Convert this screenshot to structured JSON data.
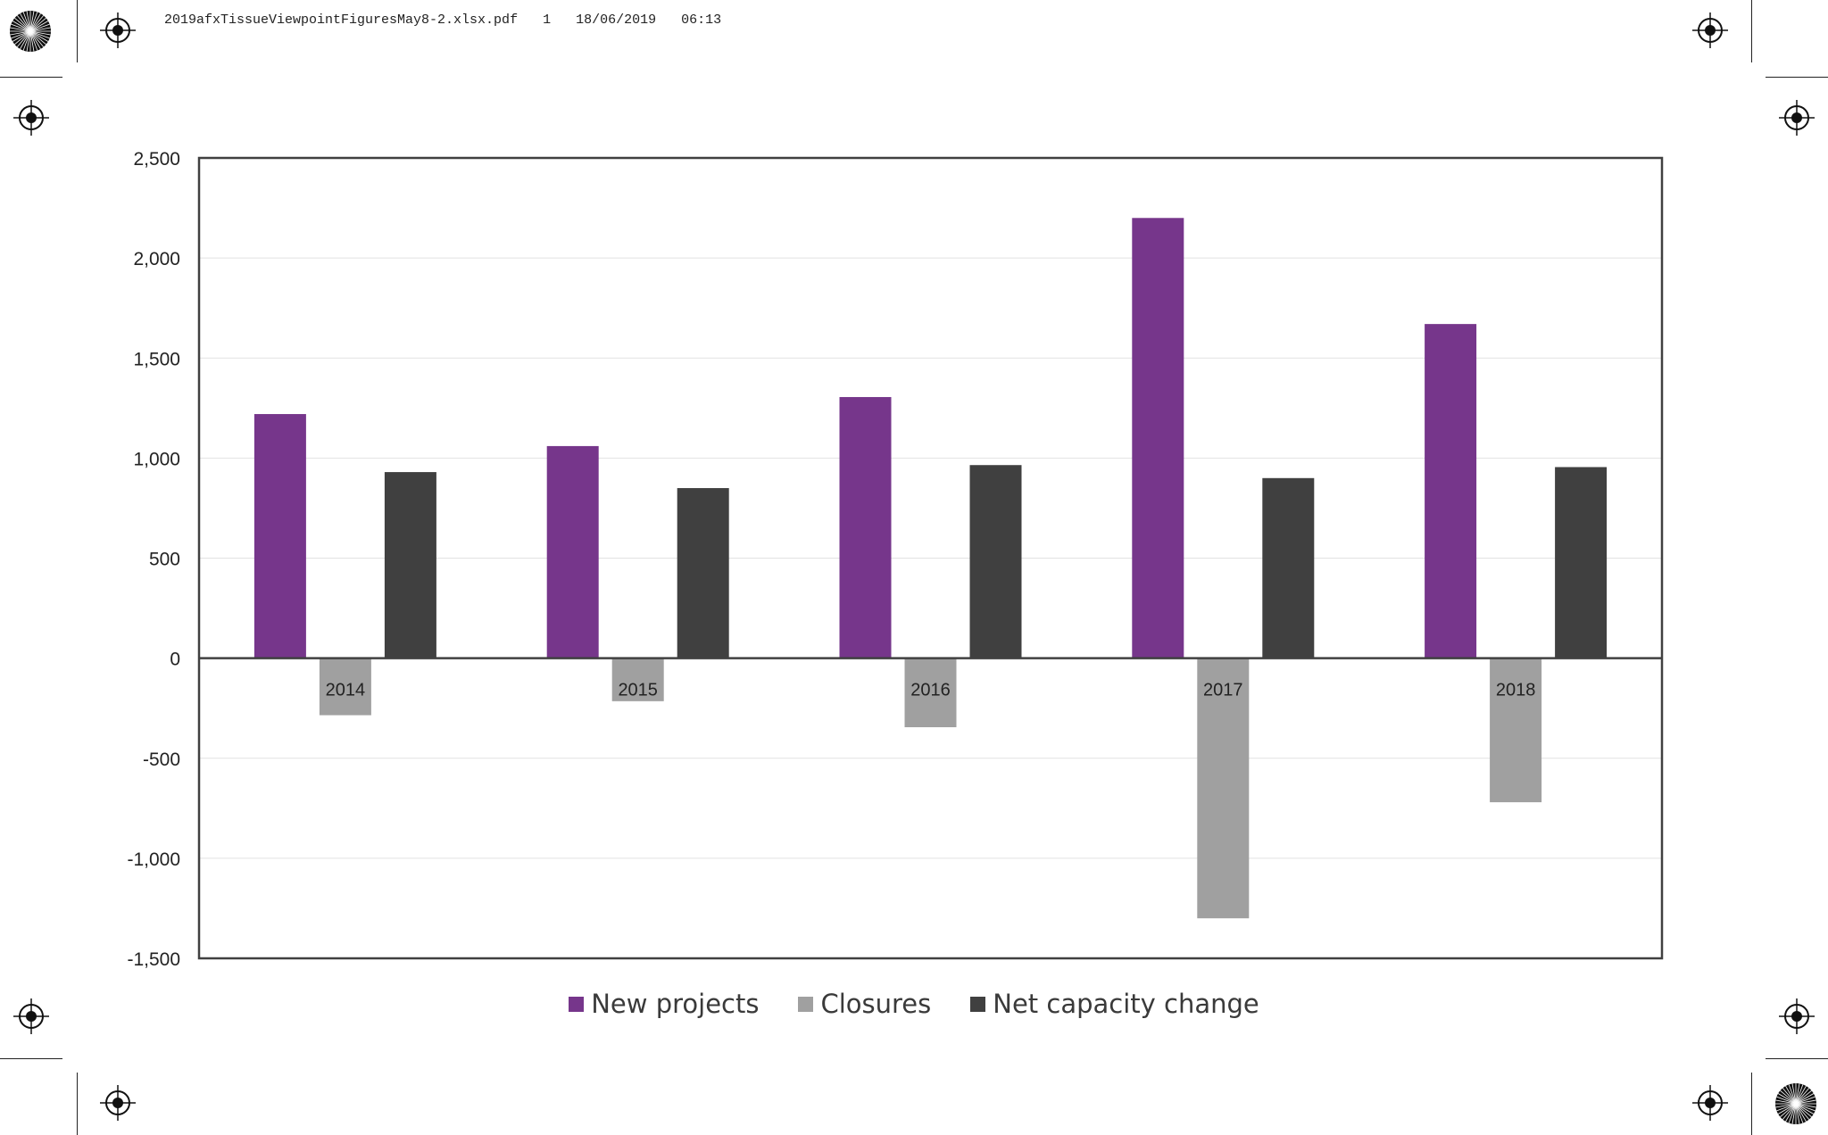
{
  "header": {
    "filename": "2019afxTissueViewpointFiguresMay8-2.xlsx.pdf",
    "page": "1",
    "date": "18/06/2019",
    "time": "06:13"
  },
  "chart_data": {
    "type": "bar",
    "title": "",
    "xlabel": "",
    "ylabel": "",
    "categories": [
      "2014",
      "2015",
      "2016",
      "2017",
      "2018"
    ],
    "series": [
      {
        "name": "New projects",
        "color": "#76368b",
        "values": [
          1220,
          1060,
          1305,
          2200,
          1670
        ]
      },
      {
        "name": "Closures",
        "color": "#a0a0a0",
        "values": [
          -285,
          -215,
          -345,
          -1300,
          -720
        ]
      },
      {
        "name": "Net capacity change",
        "color": "#404040",
        "values": [
          930,
          850,
          965,
          900,
          955
        ]
      }
    ],
    "ylim": [
      -1500,
      2500
    ],
    "yticks": [
      2500,
      2000,
      1500,
      1000,
      500,
      0,
      -500,
      -1000,
      -1500
    ],
    "ytick_labels": [
      "2,500",
      "2,000",
      "1,500",
      "1,000",
      "500",
      "0",
      "-500",
      "-1,000",
      "-1,500"
    ],
    "grid": true,
    "legend_position": "bottom"
  }
}
